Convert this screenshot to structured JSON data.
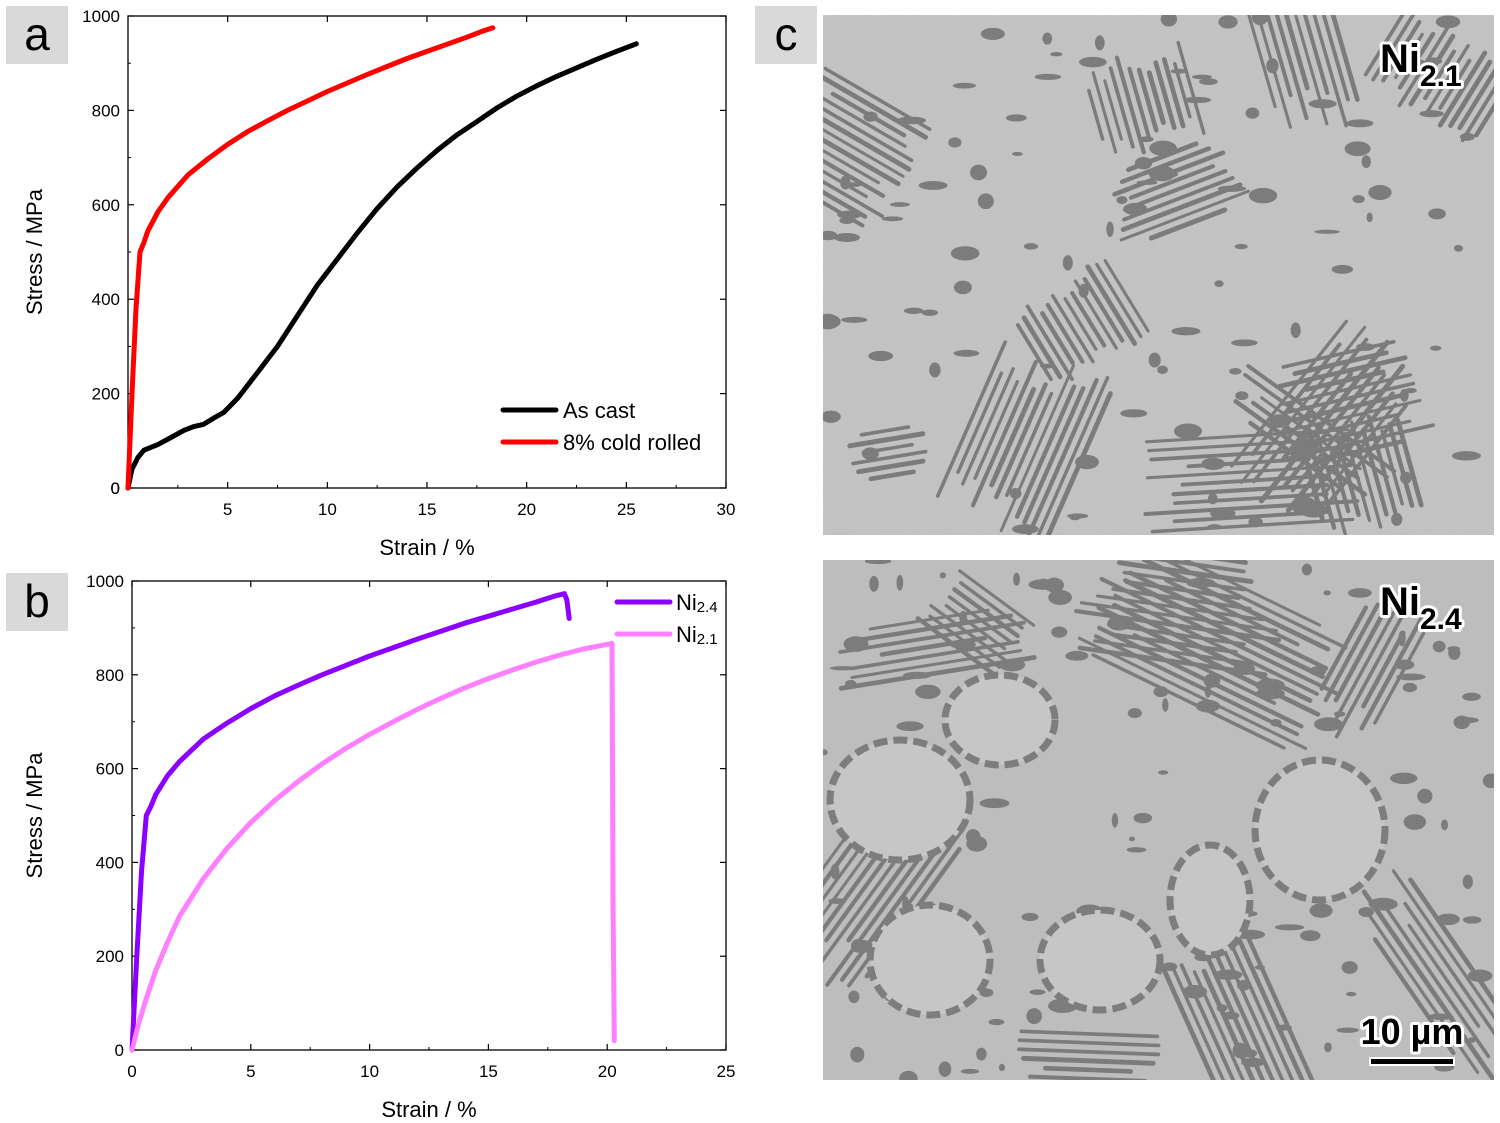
{
  "panels": {
    "a": "a",
    "b": "b",
    "c": "c"
  },
  "chart_data": [
    {
      "type": "line",
      "panel": "a",
      "xlabel": "Strain / %",
      "ylabel": "Stress / MPa",
      "xlim": [
        0,
        30
      ],
      "ylim": [
        0,
        1000
      ],
      "xticks": [
        5,
        10,
        15,
        20,
        25,
        30
      ],
      "xtick_labels": [
        "5",
        "10",
        "15",
        "20",
        "25",
        "30"
      ],
      "yticks": [
        0,
        200,
        400,
        600,
        800,
        1000
      ],
      "ytick_labels": [
        "0",
        "200",
        "400",
        "600",
        "800",
        "1000"
      ],
      "x_origin_label": "0",
      "legend_position": "bottom-right",
      "series": [
        {
          "name": "As cast",
          "color": "#000000",
          "x": [
            0,
            0.2,
            0.5,
            0.8,
            1.5,
            2.2,
            2.8,
            3.3,
            3.8,
            4.3,
            4.8,
            5.5,
            6.5,
            7.5,
            8.5,
            9.5,
            10.5,
            11.5,
            12.5,
            13.5,
            14.5,
            15.5,
            16.5,
            17.5,
            18.5,
            19.5,
            20.5,
            21.5,
            22.5,
            23.5,
            24.5,
            25.5
          ],
          "y": [
            0,
            40,
            65,
            80,
            92,
            108,
            122,
            130,
            135,
            148,
            160,
            190,
            245,
            300,
            365,
            430,
            485,
            540,
            592,
            638,
            678,
            715,
            748,
            776,
            805,
            830,
            852,
            872,
            890,
            908,
            925,
            941
          ]
        },
        {
          "name": "8% cold rolled",
          "color": "#ff0000",
          "x": [
            0,
            0.2,
            0.4,
            0.6,
            0.8,
            1.0,
            1.5,
            2.0,
            3.0,
            4.0,
            5.0,
            6.0,
            7.0,
            8.0,
            9.0,
            10.0,
            11.0,
            12.0,
            13.0,
            14.0,
            15.0,
            16.0,
            17.0,
            17.8,
            18.3
          ],
          "y": [
            0,
            200,
            380,
            500,
            520,
            545,
            585,
            615,
            663,
            697,
            728,
            755,
            778,
            800,
            820,
            840,
            858,
            876,
            893,
            910,
            925,
            940,
            955,
            968,
            975
          ]
        }
      ]
    },
    {
      "type": "line",
      "panel": "b",
      "xlabel": "Strain / %",
      "ylabel": "Stress / MPa",
      "xlim": [
        0,
        25
      ],
      "ylim": [
        0,
        1000
      ],
      "xticks": [
        0,
        5,
        10,
        15,
        20,
        25
      ],
      "xtick_labels": [
        "0",
        "5",
        "10",
        "15",
        "20",
        "25"
      ],
      "yticks": [
        0,
        200,
        400,
        600,
        800,
        1000
      ],
      "ytick_labels": [
        "0",
        "200",
        "400",
        "600",
        "800",
        "1000"
      ],
      "legend_position": "top-right",
      "series": [
        {
          "name": "Ni2.4",
          "name_base": "Ni",
          "name_sub": "2.4",
          "color": "#8b00ff",
          "x": [
            0,
            0.2,
            0.4,
            0.6,
            0.8,
            1.0,
            1.5,
            2.0,
            3.0,
            4.0,
            5.0,
            6.0,
            7.0,
            8.0,
            9.0,
            10.0,
            11.0,
            12.0,
            13.0,
            14.0,
            15.0,
            16.0,
            17.0,
            17.8,
            18.2,
            18.3,
            18.35,
            18.4
          ],
          "y": [
            0,
            200,
            380,
            500,
            520,
            545,
            585,
            615,
            663,
            697,
            728,
            755,
            778,
            800,
            820,
            840,
            858,
            876,
            893,
            910,
            925,
            940,
            955,
            968,
            973,
            960,
            940,
            920
          ]
        },
        {
          "name": "Ni2.1",
          "name_base": "Ni",
          "name_sub": "2.1",
          "color": "#ff80ff",
          "x": [
            0,
            0.3,
            0.6,
            1.0,
            1.5,
            2.0,
            3.0,
            4.0,
            5.0,
            6.0,
            7.0,
            8.0,
            9.0,
            10.0,
            11.0,
            12.0,
            13.0,
            14.0,
            15.0,
            16.0,
            17.0,
            18.0,
            19.0,
            20.0,
            20.2,
            20.25,
            20.3
          ],
          "y": [
            0,
            60,
            110,
            170,
            230,
            285,
            365,
            430,
            485,
            532,
            573,
            610,
            643,
            673,
            700,
            726,
            750,
            772,
            792,
            810,
            827,
            842,
            855,
            865,
            867,
            300,
            20
          ]
        }
      ]
    }
  ],
  "micrographs": {
    "top_label_base": "Ni",
    "top_label_sub": "2.1",
    "bottom_label_base": "Ni",
    "bottom_label_sub": "2.4",
    "scale_bar_label": "10 µm"
  }
}
